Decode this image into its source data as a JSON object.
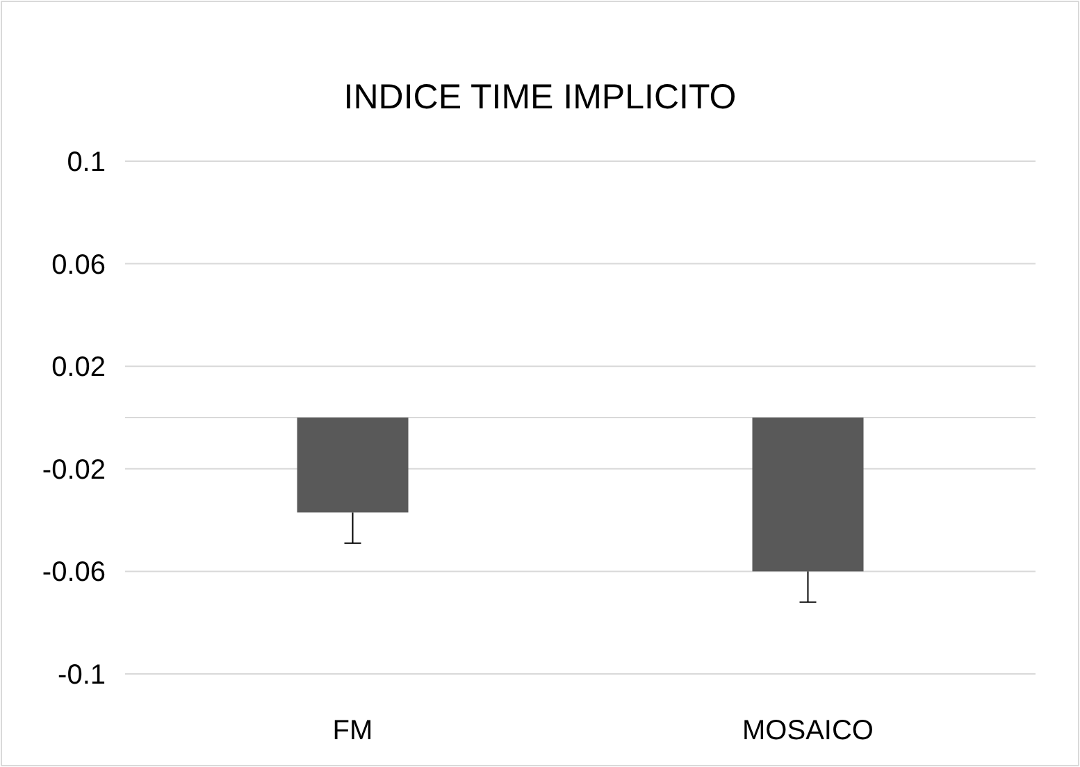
{
  "chart_data": {
    "type": "bar",
    "title": "INDICE TIME IMPLICITO",
    "categories": [
      "FM",
      "MOSAICO"
    ],
    "values": [
      -0.037,
      -0.06
    ],
    "errors": [
      [
        -0.049,
        -0.037
      ],
      [
        -0.072,
        -0.06
      ]
    ],
    "color": "#595959",
    "ylim": [
      -0.1,
      0.1
    ],
    "yticks": [
      -0.1,
      -0.06,
      -0.02,
      0.02,
      0.06,
      0.1
    ],
    "grid": "y"
  }
}
